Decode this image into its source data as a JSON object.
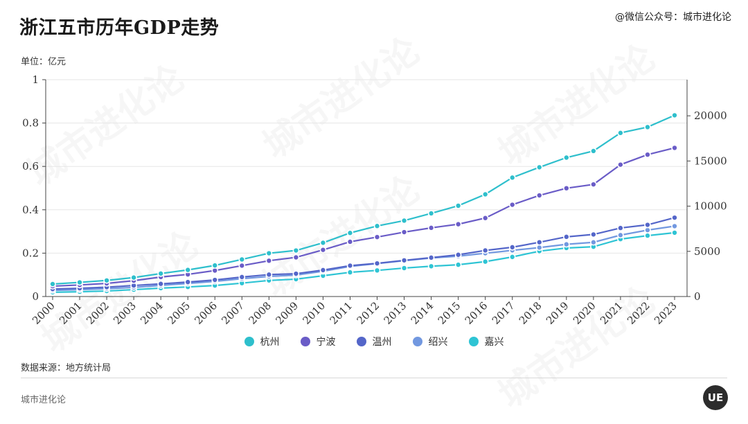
{
  "header": {
    "title": "浙江五市历年GDP走势",
    "source_tag": "@微信公众号：城市进化论",
    "unit": "单位：亿元"
  },
  "footer": {
    "source": "数据来源：地方统计局",
    "brand": "城市进化论",
    "logo_text": "UE"
  },
  "watermark": "城市进化论",
  "colors": {
    "hangzhou": "#2ebfcc",
    "ningbo": "#6a5cc7",
    "wenzhou": "#5466c9",
    "shaoxing": "#7298e0",
    "jiaxing": "#2ec4d4",
    "grid": "#e6e6e6",
    "axis": "#444444"
  },
  "chart_data": {
    "type": "line",
    "x": [
      "2000",
      "2001",
      "2002",
      "2003",
      "2004",
      "2005",
      "2006",
      "2007",
      "2008",
      "2009",
      "2010",
      "2011",
      "2012",
      "2013",
      "2014",
      "2015",
      "2016",
      "2017",
      "2018",
      "2019",
      "2020",
      "2021",
      "2022",
      "2023"
    ],
    "left_axis": {
      "ylim": [
        0,
        1
      ],
      "ticks": [
        "0",
        "0.2",
        "0.4",
        "0.6",
        "0.8",
        "1"
      ]
    },
    "right_axis": {
      "ylim": [
        0,
        24000
      ],
      "ticks": [
        "0",
        "5000",
        "10000",
        "15000",
        "20000"
      ]
    },
    "grid": true,
    "legend": "bottom-center",
    "series": [
      {
        "name": "杭州",
        "color_key": "hangzhou",
        "values": [
          1382,
          1568,
          1781,
          2099,
          2543,
          2943,
          3441,
          4104,
          4789,
          5098,
          5949,
          7038,
          7804,
          8399,
          9203,
          10050,
          11313,
          13161,
          14307,
          15373,
          16106,
          18109,
          18753,
          20059
        ]
      },
      {
        "name": "宁波",
        "color_key": "ningbo",
        "values": [
          1145,
          1278,
          1453,
          1754,
          2158,
          2447,
          2874,
          3418,
          3964,
          4334,
          5163,
          6059,
          6582,
          7129,
          7602,
          8003,
          8686,
          10157,
          11193,
          11985,
          12409,
          14595,
          15704,
          16452
        ]
      },
      {
        "name": "温州",
        "color_key": "wenzhou",
        "values": [
          825,
          915,
          1032,
          1220,
          1402,
          1600,
          1837,
          2157,
          2424,
          2527,
          2925,
          3418,
          3669,
          4004,
          4303,
          4619,
          5101,
          5453,
          6006,
          6606,
          6871,
          7585,
          7935,
          8730
        ]
      },
      {
        "name": "绍兴",
        "color_key": "shaoxing",
        "values": [
          680,
          760,
          860,
          1010,
          1225,
          1447,
          1678,
          1975,
          2220,
          2375,
          2795,
          3332,
          3654,
          3967,
          4265,
          4466,
          4789,
          5108,
          5417,
          5781,
          6001,
          6795,
          7351,
          7791
        ]
      },
      {
        "name": "嘉兴",
        "color_key": "jiaxing",
        "values": [
          470,
          530,
          610,
          760,
          930,
          1060,
          1215,
          1480,
          1780,
          1920,
          2300,
          2677,
          2890,
          3148,
          3353,
          3517,
          3862,
          4380,
          5019,
          5370,
          5510,
          6355,
          6739,
          7062
        ]
      }
    ]
  }
}
